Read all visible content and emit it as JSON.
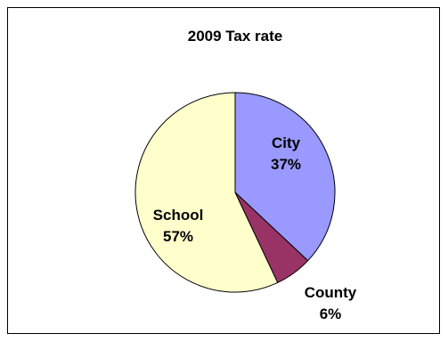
{
  "chart_data": {
    "type": "pie",
    "title": "2009 Tax rate",
    "slices": [
      {
        "label": "City",
        "value": 37,
        "value_label": "37%",
        "color": "#9999ff"
      },
      {
        "label": "County",
        "value": 6,
        "value_label": "6%",
        "color": "#993366"
      },
      {
        "label": "School",
        "value": 57,
        "value_label": "57%",
        "color": "#ffffcc"
      }
    ],
    "legend": "none",
    "labels": "category and percentage on slices",
    "start_angle": "12 o'clock, clockwise"
  }
}
